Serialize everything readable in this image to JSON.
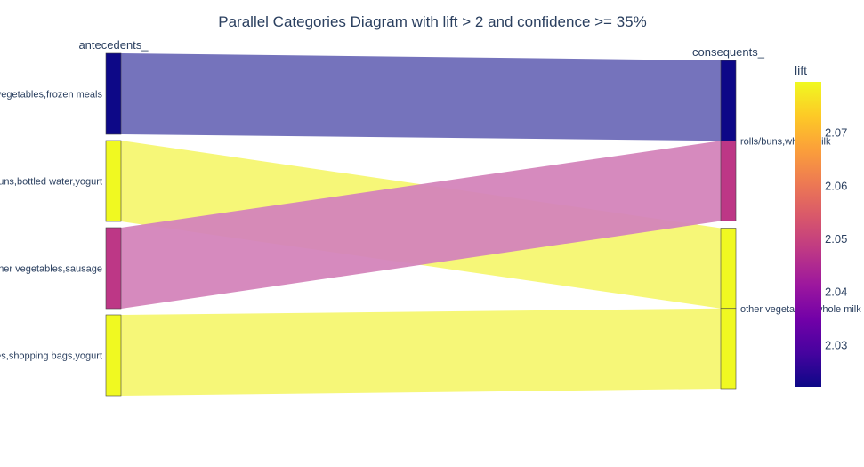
{
  "chart_data": {
    "type": "parallel_categories",
    "title": "Parallel Categories Diagram with lift > 2 and confidence >= 35%",
    "dimensions": [
      {
        "label": "antecedents_",
        "categories": [
          "other vegetables,frozen meals",
          "rolls/buns,bottled water,yogurt",
          "other vegetables,sausage",
          "other vegetables,shopping bags,yogurt"
        ]
      },
      {
        "label": "consequents_",
        "categories": [
          "rolls/buns,whole milk",
          "other vegetables,whole milk"
        ]
      }
    ],
    "rules": [
      {
        "antecedent": "other vegetables,frozen meals",
        "consequent": "rolls/buns,whole milk",
        "lift": 2.022,
        "color": "#0d0887"
      },
      {
        "antecedent": "rolls/buns,bottled water,yogurt",
        "consequent": "other vegetables,whole milk",
        "lift": 2.079,
        "color": "#f0f921"
      },
      {
        "antecedent": "other vegetables,sausage",
        "consequent": "rolls/buns,whole milk",
        "lift": 2.046,
        "color": "#bd3786"
      },
      {
        "antecedent": "other vegetables,shopping bags,yogurt",
        "consequent": "other vegetables,whole milk",
        "lift": 2.078,
        "color": "#f0f921"
      }
    ],
    "colorbar": {
      "title": "lift",
      "min": 2.022,
      "max": 2.0795,
      "ticks": [
        2.03,
        2.04,
        2.05,
        2.06,
        2.07
      ],
      "tick_labels": [
        "2.03",
        "2.04",
        "2.05",
        "2.06",
        "2.07"
      ],
      "colorscale": [
        "#0d0887",
        "#46039f",
        "#7201a8",
        "#9c179e",
        "#bd3786",
        "#d8576b",
        "#ed7953",
        "#fb9f3a",
        "#fdca26",
        "#f0f921"
      ]
    }
  }
}
